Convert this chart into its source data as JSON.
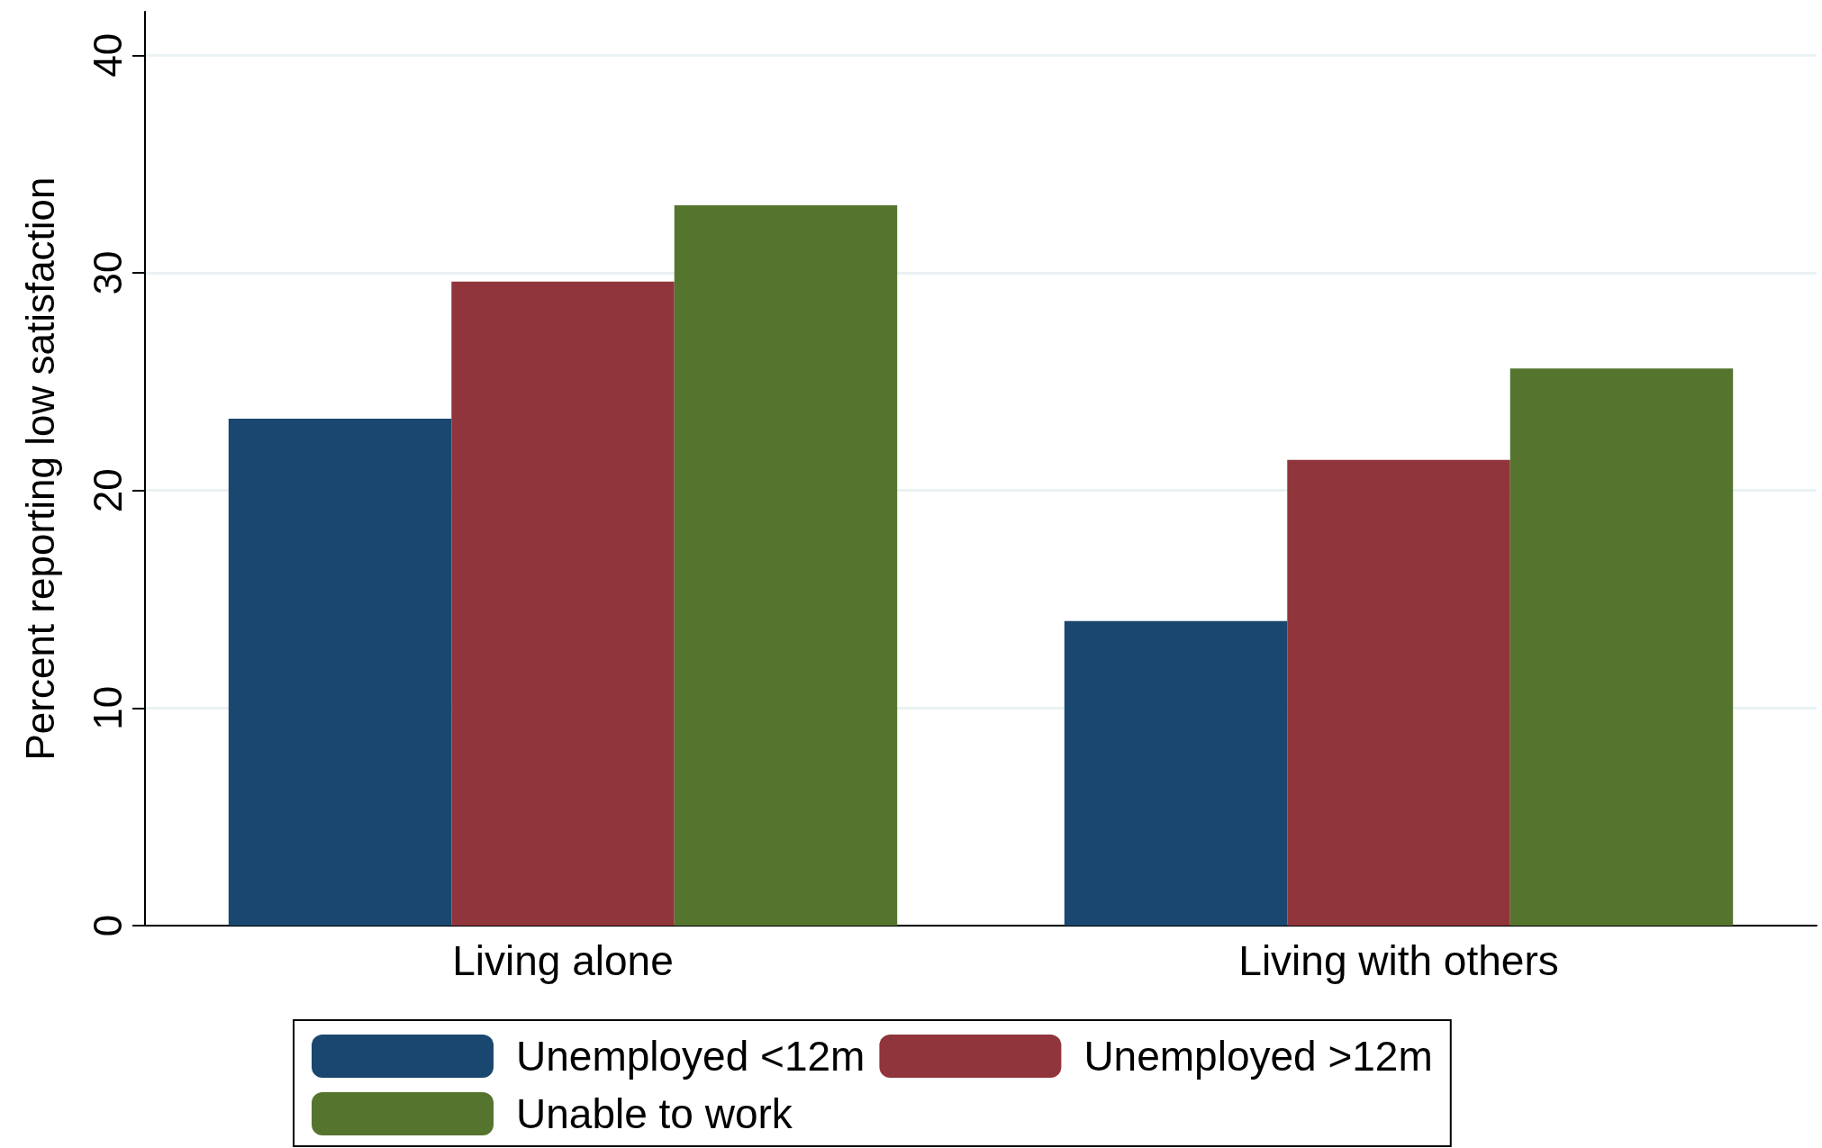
{
  "chart_data": {
    "type": "bar",
    "ylabel": "Percent reporting low satisfaction",
    "categories": [
      "Living alone",
      "Living with others"
    ],
    "series": [
      {
        "name": "Unemployed <12m",
        "color": "#1a476f",
        "values": [
          23.3,
          14.0
        ]
      },
      {
        "name": "Unemployed >12m",
        "color": "#90353b",
        "values": [
          29.6,
          21.4
        ]
      },
      {
        "name": "Unable to work",
        "color": "#55752f",
        "values": [
          33.1,
          25.6
        ]
      }
    ],
    "ylim": [
      0,
      42
    ],
    "yticks": [
      0,
      10,
      20,
      30,
      40
    ],
    "grid": "y",
    "legend": "bottom"
  }
}
